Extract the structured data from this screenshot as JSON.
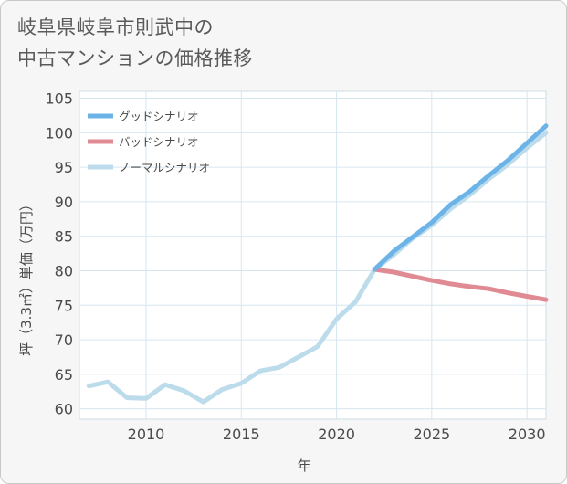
{
  "title": {
    "line1": "岐阜県岐阜市則武中の",
    "line2": "中古マンションの価格推移"
  },
  "chart_data": {
    "type": "line",
    "title": "岐阜県岐阜市則武中の中古マンションの価格推移",
    "xlabel": "年",
    "ylabel": "坪（3.3㎡）単価（万円）",
    "xlim": [
      2006.5,
      2031
    ],
    "ylim": [
      58.5,
      106
    ],
    "x_ticks": [
      2010,
      2015,
      2020,
      2025,
      2030
    ],
    "y_ticks": [
      60,
      65,
      70,
      75,
      80,
      85,
      90,
      95,
      100,
      105
    ],
    "grid": true,
    "legend_position": "top-left",
    "series": [
      {
        "name": "グッドシナリオ",
        "color": "#6cb4e8",
        "x": [
          2022,
          2023,
          2024,
          2025,
          2026,
          2027,
          2028,
          2029,
          2030,
          2031
        ],
        "values": [
          80.2,
          82.8,
          84.9,
          87.0,
          89.6,
          91.5,
          93.8,
          96.0,
          98.5,
          101.0
        ]
      },
      {
        "name": "バッドシナリオ",
        "color": "#e08a93",
        "x": [
          2022,
          2023,
          2024,
          2025,
          2026,
          2027,
          2028,
          2029,
          2030,
          2031
        ],
        "values": [
          80.2,
          79.8,
          79.2,
          78.6,
          78.1,
          77.7,
          77.4,
          76.8,
          76.3,
          75.8
        ]
      },
      {
        "name": "ノーマルシナリオ",
        "color": "#bcdcec",
        "x": [
          2007,
          2008,
          2009,
          2010,
          2011,
          2012,
          2013,
          2014,
          2015,
          2016,
          2017,
          2018,
          2019,
          2020,
          2021,
          2022,
          2023,
          2024,
          2025,
          2026,
          2027,
          2028,
          2029,
          2030,
          2031
        ],
        "values": [
          63.3,
          63.9,
          61.6,
          61.5,
          63.5,
          62.6,
          61.0,
          62.8,
          63.7,
          65.5,
          66.0,
          67.5,
          69.0,
          73.0,
          75.5,
          80.2,
          82.3,
          84.7,
          86.6,
          89.0,
          91.0,
          93.3,
          95.4,
          97.8,
          100.0
        ]
      }
    ]
  }
}
